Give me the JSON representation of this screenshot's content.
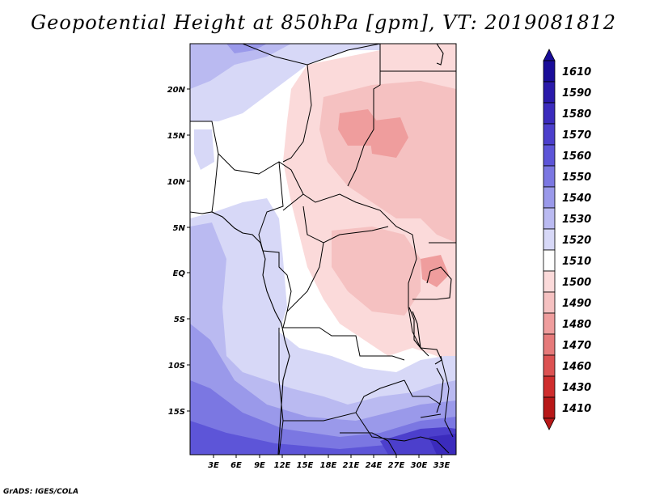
{
  "title": "Geopotential Height at 850hPa [gpm], VT: 2019081812",
  "credit": "GrADS: IGES/COLA",
  "latitude_labels": [
    "20N",
    "15N",
    "10N",
    "5N",
    "EQ",
    "5S",
    "10S",
    "15S"
  ],
  "longitude_labels": [
    "3E",
    "6E",
    "9E",
    "12E",
    "15E",
    "18E",
    "21E",
    "24E",
    "27E",
    "30E",
    "33E"
  ],
  "colorbar": {
    "levels": [
      "1610",
      "1590",
      "1580",
      "1570",
      "1560",
      "1550",
      "1540",
      "1530",
      "1520",
      "1510",
      "1500",
      "1490",
      "1480",
      "1470",
      "1460",
      "1430",
      "1410"
    ],
    "colors": [
      "#1a0d99",
      "#2a1aaa",
      "#3b2bbd",
      "#4c3fcc",
      "#5d55d8",
      "#7b77e2",
      "#9a99ea",
      "#babaf1",
      "#d7d8f7",
      "#ffffff",
      "#fbdada",
      "#f5c1c1",
      "#ef9d9d",
      "#e67a7a",
      "#dc5252",
      "#cf2d2d",
      "#b81818"
    ]
  }
}
